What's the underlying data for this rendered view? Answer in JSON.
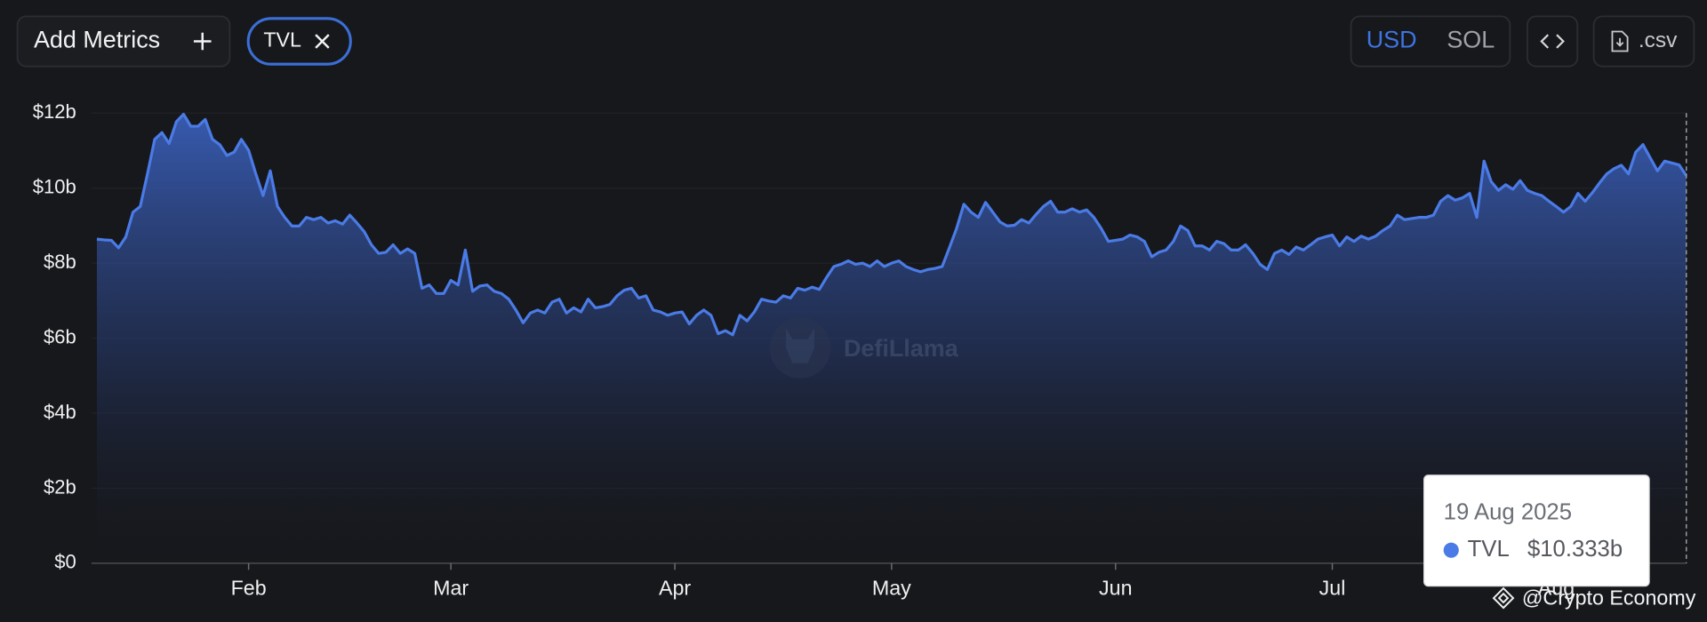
{
  "toolbar": {
    "add_metrics": "Add Metrics",
    "metric_chip": "TVL",
    "currency_options": [
      "USD",
      "SOL"
    ],
    "csv": ".csv"
  },
  "watermark": "DefiLlama",
  "credit": "@Crypto Economy",
  "chart_data": {
    "type": "area",
    "categories": [
      null,
      null,
      null,
      null,
      null,
      null,
      null,
      null,
      null,
      null,
      null,
      null,
      null,
      null,
      null,
      null,
      null,
      null,
      null,
      null,
      null,
      "Feb",
      null,
      null,
      null,
      null,
      null,
      null,
      null,
      null,
      null,
      null,
      null,
      null,
      null,
      null,
      null,
      null,
      null,
      null,
      null,
      null,
      null,
      null,
      null,
      null,
      null,
      null,
      null,
      "Mar",
      null,
      null,
      null,
      null,
      null,
      null,
      null,
      null,
      null,
      null,
      null,
      null,
      null,
      null,
      null,
      null,
      null,
      null,
      null,
      null,
      null,
      null,
      null,
      null,
      null,
      null,
      null,
      null,
      null,
      null,
      "Apr",
      null,
      null,
      null,
      null,
      null,
      null,
      null,
      null,
      null,
      null,
      null,
      null,
      null,
      null,
      null,
      null,
      null,
      null,
      null,
      null,
      null,
      null,
      null,
      null,
      null,
      null,
      null,
      null,
      null,
      "May",
      null,
      null,
      null,
      null,
      null,
      null,
      null,
      null,
      null,
      null,
      null,
      null,
      null,
      null,
      null,
      null,
      null,
      null,
      null,
      null,
      null,
      null,
      null,
      null,
      null,
      null,
      null,
      null,
      null,
      null,
      "Jun",
      null,
      null,
      null,
      null,
      null,
      null,
      null,
      null,
      null,
      null,
      null,
      null,
      null,
      null,
      null,
      null,
      null,
      null,
      null,
      null,
      null,
      null,
      null,
      null,
      null,
      null,
      null,
      null,
      null,
      "Jul",
      null,
      null,
      null,
      null,
      null,
      null,
      null,
      null,
      null,
      null,
      null,
      null,
      null,
      null,
      null,
      null,
      null,
      null,
      null,
      null,
      null,
      null,
      null,
      null,
      null,
      null,
      null,
      null,
      null,
      null,
      "Aug",
      null,
      null,
      null,
      null,
      null,
      null,
      null,
      null,
      null,
      null,
      null,
      null,
      null,
      null,
      null,
      null,
      null,
      null
    ],
    "series": [
      {
        "name": "TVL",
        "color": "#4a7be6",
        "values": [
          8.64,
          8.62,
          8.61,
          8.41,
          8.7,
          9.36,
          9.51,
          10.38,
          11.3,
          11.48,
          11.19,
          11.77,
          11.97,
          11.65,
          11.65,
          11.83,
          11.3,
          11.16,
          10.87,
          10.96,
          11.3,
          11.01,
          10.38,
          9.8,
          10.46,
          9.51,
          9.22,
          8.99,
          8.99,
          9.22,
          9.16,
          9.22,
          9.07,
          9.13,
          9.04,
          9.28,
          9.07,
          8.84,
          8.49,
          8.26,
          8.29,
          8.49,
          8.26,
          8.38,
          8.26,
          7.33,
          7.42,
          7.19,
          7.19,
          7.54,
          7.42,
          8.35,
          7.25,
          7.39,
          7.42,
          7.25,
          7.19,
          7.04,
          6.75,
          6.41,
          6.67,
          6.75,
          6.67,
          6.96,
          7.04,
          6.67,
          6.81,
          6.7,
          7.04,
          6.81,
          6.84,
          6.9,
          7.13,
          7.28,
          7.33,
          7.07,
          7.13,
          6.75,
          6.7,
          6.61,
          6.67,
          6.7,
          6.38,
          6.61,
          6.75,
          6.61,
          6.12,
          6.2,
          6.09,
          6.61,
          6.46,
          6.7,
          7.04,
          6.99,
          6.96,
          7.13,
          7.07,
          7.33,
          7.28,
          7.36,
          7.3,
          7.62,
          7.91,
          7.97,
          8.06,
          7.97,
          8.0,
          7.91,
          8.06,
          7.91,
          8.0,
          8.06,
          7.91,
          7.83,
          7.77,
          7.83,
          7.86,
          7.91,
          8.41,
          8.93,
          9.57,
          9.36,
          9.22,
          9.62,
          9.36,
          9.1,
          8.99,
          9.01,
          9.16,
          9.07,
          9.3,
          9.51,
          9.65,
          9.36,
          9.36,
          9.45,
          9.36,
          9.42,
          9.22,
          8.93,
          8.58,
          8.61,
          8.64,
          8.75,
          8.7,
          8.58,
          8.17,
          8.29,
          8.35,
          8.58,
          8.99,
          8.87,
          8.46,
          8.46,
          8.35,
          8.58,
          8.52,
          8.35,
          8.35,
          8.49,
          8.26,
          7.97,
          7.83,
          8.26,
          8.35,
          8.23,
          8.43,
          8.35,
          8.49,
          8.64,
          8.7,
          8.75,
          8.46,
          8.7,
          8.58,
          8.72,
          8.64,
          8.72,
          8.87,
          8.99,
          9.28,
          9.16,
          9.19,
          9.22,
          9.22,
          9.28,
          9.65,
          9.8,
          9.68,
          9.74,
          9.86,
          9.22,
          10.72,
          10.17,
          9.94,
          10.09,
          9.97,
          10.2,
          9.94,
          9.86,
          9.8,
          9.65,
          9.51,
          9.36,
          9.51,
          9.86,
          9.65,
          9.88,
          10.14,
          10.38,
          10.52,
          10.61,
          10.38,
          10.96,
          11.16,
          10.81,
          10.46,
          10.72,
          10.67,
          10.62,
          10.333
        ]
      }
    ],
    "ylim": [
      0,
      12
    ],
    "yticks": [
      {
        "value": 0,
        "label": "$0"
      },
      {
        "value": 2,
        "label": "$2b"
      },
      {
        "value": 4,
        "label": "$4b"
      },
      {
        "value": 6,
        "label": "$6b"
      },
      {
        "value": 8,
        "label": "$8b"
      },
      {
        "value": 10,
        "label": "$10b"
      },
      {
        "value": 12,
        "label": "$12b"
      }
    ],
    "grid": true,
    "tooltip": {
      "title": "19 Aug 2025",
      "label": "$10.333b"
    }
  }
}
